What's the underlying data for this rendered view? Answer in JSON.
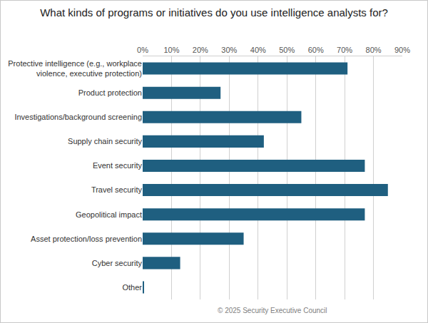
{
  "chart_data": {
    "type": "bar",
    "orientation": "horizontal",
    "title": "What kinds of programs or initiatives do you use intelligence analysts for?",
    "categories": [
      "Protective intelligence (e.g., workplace violence, executive protection)",
      "Product protection",
      "Investigations/background screening",
      "Supply chain security",
      "Event security",
      "Travel security",
      "Geopolitical impact",
      "Asset protection/loss prevention",
      "Cyber security",
      "Other"
    ],
    "values": [
      71,
      27,
      55,
      42,
      77,
      85,
      77,
      35,
      13,
      0.5
    ],
    "color": "#1f5f80",
    "xlim": [
      0,
      90
    ],
    "xticks": [
      {
        "value": 0,
        "label": "0%"
      },
      {
        "value": 10,
        "label": "10%"
      },
      {
        "value": 20,
        "label": "20%"
      },
      {
        "value": 30,
        "label": "30%"
      },
      {
        "value": 40,
        "label": "40%"
      },
      {
        "value": 50,
        "label": "50%"
      },
      {
        "value": 60,
        "label": "60%"
      },
      {
        "value": 70,
        "label": "70%"
      },
      {
        "value": 80,
        "label": "80%"
      },
      {
        "value": 90,
        "label": "90%"
      }
    ],
    "grid": true,
    "annotations": [
      "© 2025 Security Executive Council"
    ]
  }
}
